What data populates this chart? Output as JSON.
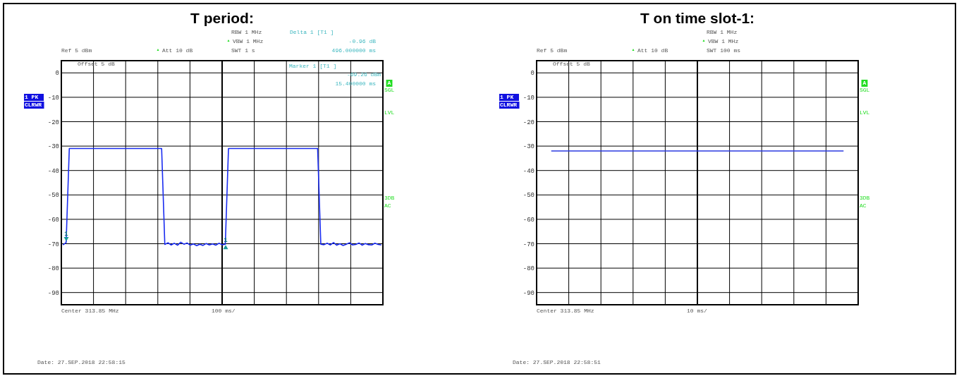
{
  "chart_data": [
    {
      "type": "line",
      "title": "T period:",
      "categories": [
        null,
        null,
        null,
        null,
        null,
        null,
        null,
        null,
        null,
        null,
        null,
        null,
        null,
        null,
        null,
        null,
        null,
        null,
        null,
        null,
        null,
        null,
        null,
        null,
        null,
        null,
        null,
        null,
        null,
        null,
        null,
        null,
        null,
        null,
        null,
        null,
        null,
        null,
        null,
        null,
        null,
        null,
        null,
        null,
        null,
        null,
        null,
        null,
        null,
        null,
        null,
        null,
        null,
        null,
        null,
        null,
        null,
        null,
        null,
        null,
        null,
        null,
        null,
        null,
        null,
        null,
        null,
        null,
        null,
        null,
        null,
        null,
        null,
        null,
        null,
        null,
        null,
        null,
        null,
        null,
        null,
        null,
        null,
        null,
        null,
        null,
        null,
        null,
        null,
        null,
        null,
        null,
        null,
        null,
        null,
        null,
        null,
        null,
        null,
        null,
        null
      ],
      "series": [
        {
          "color": "#1a2cf0",
          "values": [
            -70.5,
            -69.5,
            -31,
            -31,
            -31,
            -31,
            -31,
            -31,
            -31,
            -31,
            -31,
            -31,
            -31,
            -31,
            -31,
            -31,
            -31,
            -31,
            -31,
            -31,
            -31,
            -31,
            -31,
            -31,
            -31,
            -31,
            -31,
            -31,
            -31,
            -31,
            -31,
            -31,
            -70.3,
            -69.6,
            -70.5,
            -69.8,
            -70.6,
            -69.4,
            -70.2,
            -69.7,
            -70.6,
            -70.1,
            -70.8,
            -70.2,
            -70.7,
            -69.9,
            -70.5,
            -70.1,
            -70.6,
            -69.8,
            -70.4,
            -70.2,
            -31,
            -31,
            -31,
            -31,
            -31,
            -31,
            -31,
            -31,
            -31,
            -31,
            -31,
            -31,
            -31,
            -31,
            -31,
            -31,
            -31,
            -31,
            -31,
            -31,
            -31,
            -31,
            -31,
            -31,
            -31,
            -31,
            -31,
            -31,
            -31,
            -70.2,
            -70.4,
            -69.8,
            -70.5,
            -69.5,
            -70.6,
            -70,
            -70.7,
            -70.2,
            -69.6,
            -70.5,
            -70.3,
            -69.7,
            -70.6,
            -69.9,
            -70.4,
            -70.5,
            -69.8,
            -70.3,
            -70.5
          ]
        }
      ],
      "ylim": [
        -95,
        5
      ],
      "yticks": [
        0,
        -10,
        -20,
        -30,
        -40,
        -50,
        -60,
        -70,
        -80,
        -90
      ],
      "grid": true,
      "tick_labels": "y",
      "annotations": [
        "RBW 1 MHz",
        "VBW 1 MHz",
        "SWT 1 s",
        "Ref 5 dBm",
        "Att 10 dB",
        "Offset 5 dB",
        "1 PK",
        "CLRWR",
        "A",
        "SGL",
        "LVL",
        "3DB",
        "AC",
        "Center 313.85 MHz",
        "100 ms/",
        "Date: 27.SEP.2018 22:58:15",
        "Delta 1 [T1 ]",
        "-0.96 dB",
        "496.000000 ms",
        "Marker 1 [T1 ]",
        "-69.26 dBm",
        "15.400000 ms",
        {
          "text": "1",
          "y": -69.26
        },
        {
          "text": "1",
          "y": -70.22
        }
      ]
    },
    {
      "type": "line",
      "title": "T on time slot-1:",
      "categories": [
        null,
        null,
        null,
        null,
        null,
        null,
        null,
        null,
        null,
        null,
        null
      ],
      "series": [
        {
          "color": "#2a3ae0",
          "values": [
            -32,
            -32,
            -32,
            -32,
            -32,
            -32,
            -32,
            -32,
            -32,
            -32,
            -32
          ]
        }
      ],
      "ylim": [
        -95,
        5
      ],
      "yticks": [
        0,
        -10,
        -20,
        -30,
        -40,
        -50,
        -60,
        -70,
        -80,
        -90
      ],
      "grid": true,
      "tick_labels": "y",
      "annotations": [
        "RBW 1 MHz",
        "VBW 1 MHz",
        "SWT 100 ms",
        "Ref 5 dBm",
        "Att 10 dB",
        "Offset 5 dB",
        "1 PK",
        "CLRWR",
        "A",
        "SGL",
        "LVL",
        "3DB",
        "AC",
        "Center 313.85 MHz",
        "10 ms/",
        "Date: 27.SEP.2018 22:58:51"
      ]
    }
  ]
}
